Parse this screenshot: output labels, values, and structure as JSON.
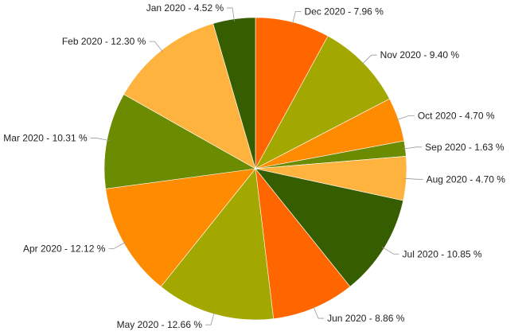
{
  "chart_data": {
    "type": "pie",
    "start": "top",
    "direction": "clockwise",
    "slices": [
      {
        "label": "Dec 2020 - 7.96 %",
        "category": "Dec 2020",
        "value": 7.96,
        "color": "#ff6600"
      },
      {
        "label": "Nov 2020 - 9.40 %",
        "category": "Nov 2020",
        "value": 9.4,
        "color": "#a3a800"
      },
      {
        "label": "Oct 2020 - 4.70 %",
        "category": "Oct 2020",
        "value": 4.7,
        "color": "#ff8c00"
      },
      {
        "label": "Sep 2020 - 1.63 %",
        "category": "Sep 2020",
        "value": 1.63,
        "color": "#6b8c00"
      },
      {
        "label": "Aug 2020 - 4.70 %",
        "category": "Aug 2020",
        "value": 4.7,
        "color": "#ffb33f"
      },
      {
        "label": "Jul 2020 - 10.85 %",
        "category": "Jul 2020",
        "value": 10.85,
        "color": "#365e00"
      },
      {
        "label": "Jun 2020 - 8.86 %",
        "category": "Jun 2020",
        "value": 8.86,
        "color": "#ff6600"
      },
      {
        "label": "May 2020 - 12.66 %",
        "category": "May 2020",
        "value": 12.66,
        "color": "#a3a800"
      },
      {
        "label": "Apr 2020 - 12.12 %",
        "category": "Apr 2020",
        "value": 12.12,
        "color": "#ff8c00"
      },
      {
        "label": "Mar 2020 - 10.31 %",
        "category": "Mar 2020",
        "value": 10.31,
        "color": "#6b8c00"
      },
      {
        "label": "Feb 2020 - 12.30 %",
        "category": "Feb 2020",
        "value": 12.3,
        "color": "#ffb33f"
      },
      {
        "label": "Jan 2020 - 4.52 %",
        "category": "Jan 2020",
        "value": 4.52,
        "color": "#365e00"
      }
    ]
  }
}
